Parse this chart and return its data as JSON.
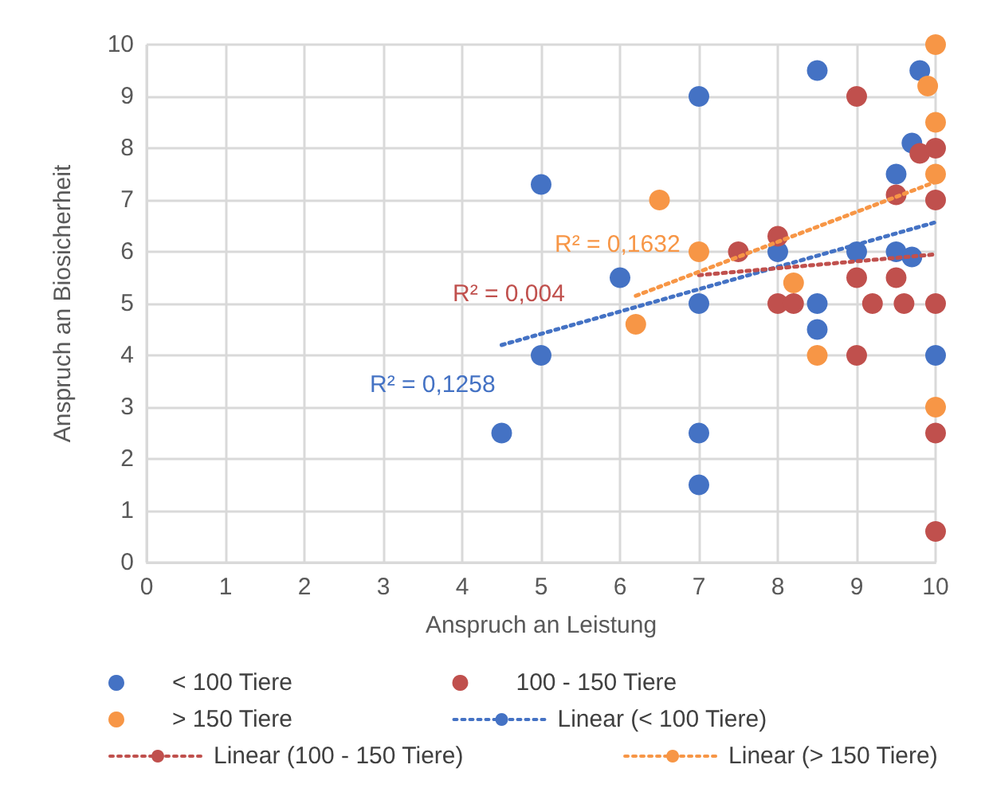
{
  "chart_data": {
    "type": "scatter",
    "xlabel": "Anspruch an Leistung",
    "ylabel": "Anspruch an Biosicherheit",
    "xlim": [
      0,
      10
    ],
    "ylim": [
      0,
      10
    ],
    "xticks": [
      0,
      1,
      2,
      3,
      4,
      5,
      6,
      7,
      8,
      9,
      10
    ],
    "yticks": [
      0,
      1,
      2,
      3,
      4,
      5,
      6,
      7,
      8,
      9,
      10
    ],
    "grid": true,
    "legend": "bottom",
    "marker": "circle",
    "line_style": "dotted",
    "series": [
      {
        "name": "< 100 Tiere",
        "color": "#4472c4",
        "x": [
          4.5,
          5,
          5,
          6,
          7,
          7,
          7,
          7,
          8,
          8.5,
          8.5,
          8.5,
          9,
          9.5,
          9.5,
          9.7,
          9.7,
          9.8,
          10
        ],
        "values": [
          2.5,
          4,
          7.3,
          5.5,
          9,
          5,
          2.5,
          1.5,
          6,
          9.5,
          5,
          4.5,
          6,
          7.5,
          6,
          8.1,
          5.9,
          9.5,
          4
        ]
      },
      {
        "name": "100 - 150 Tiere",
        "color": "#c0504d",
        "x": [
          7.5,
          8,
          8,
          8.2,
          9,
          9,
          9,
          9.2,
          9.5,
          9.5,
          9.6,
          9.8,
          10,
          10,
          10,
          10,
          10
        ],
        "values": [
          6,
          6.3,
          5,
          5,
          9,
          5.5,
          4,
          5,
          7.1,
          5.5,
          5,
          7.9,
          8,
          7,
          5,
          2.5,
          0.6
        ]
      },
      {
        "name": "> 150 Tiere",
        "color": "#f79646",
        "x": [
          6.2,
          6.5,
          7,
          8.2,
          8.5,
          9.9,
          10,
          10,
          10,
          10
        ],
        "values": [
          4.6,
          7,
          6,
          5.4,
          4,
          9.2,
          10,
          8.5,
          7.5,
          3
        ]
      },
      {
        "name": "Linear (< 100 Tiere)",
        "type": "line",
        "marker": "none",
        "color": "#4472c4",
        "x": [
          4.5,
          10
        ],
        "values": [
          4.2,
          6.57
        ]
      },
      {
        "name": "Linear (100 - 150 Tiere)",
        "type": "line",
        "marker": "none",
        "color": "#c0504d",
        "x": [
          7,
          10
        ],
        "values": [
          5.55,
          5.95
        ]
      },
      {
        "name": "Linear (> 150 Tiere)",
        "type": "line",
        "marker": "none",
        "color": "#f79646",
        "x": [
          6.2,
          10
        ],
        "values": [
          5.15,
          7.35
        ]
      }
    ],
    "annotations": [
      "R² = 0,1258",
      "R² = 0,004",
      "R² = 0,1632"
    ]
  }
}
